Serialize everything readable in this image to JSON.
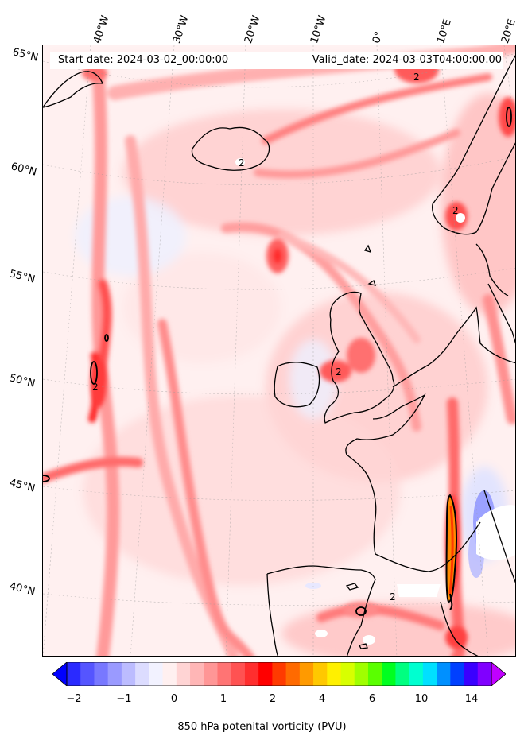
{
  "header": {
    "start_date": "Start date: 2024-03-02_00:00:00",
    "valid_date": "Valid_date: 2024-03-03T04:00:00.00"
  },
  "lat_labels": [
    "65°N",
    "60°N",
    "55°N",
    "50°N",
    "45°N",
    "40°N"
  ],
  "lon_labels": [
    "40°W",
    "30°W",
    "20°W",
    "10°W",
    "0°",
    "10°E",
    "20°E"
  ],
  "contour_labels": [
    "2",
    "2",
    "2",
    "2",
    "2",
    "2"
  ],
  "colorbar": {
    "label": "850 hPa potenital vorticity (PVU)",
    "ticks": [
      "−2",
      "−1",
      "0",
      "1",
      "2",
      "4",
      "6",
      "10",
      "14"
    ],
    "colors": [
      "#0000ff",
      "#2a2aff",
      "#5555ff",
      "#7878ff",
      "#9a9aff",
      "#bcbcff",
      "#dcdcff",
      "#f2f2ff",
      "#fff0f0",
      "#ffd4d4",
      "#ffb6b6",
      "#ff9696",
      "#ff7474",
      "#ff5252",
      "#ff2e2e",
      "#ff0000",
      "#ff3a00",
      "#ff6a00",
      "#ff9a00",
      "#ffc800",
      "#fff000",
      "#d8ff00",
      "#a0ff00",
      "#5aff00",
      "#00ff20",
      "#00ff80",
      "#00ffd0",
      "#00e0ff",
      "#0090ff",
      "#0040ff",
      "#3a00ff",
      "#8000ff",
      "#c000ff"
    ]
  }
}
